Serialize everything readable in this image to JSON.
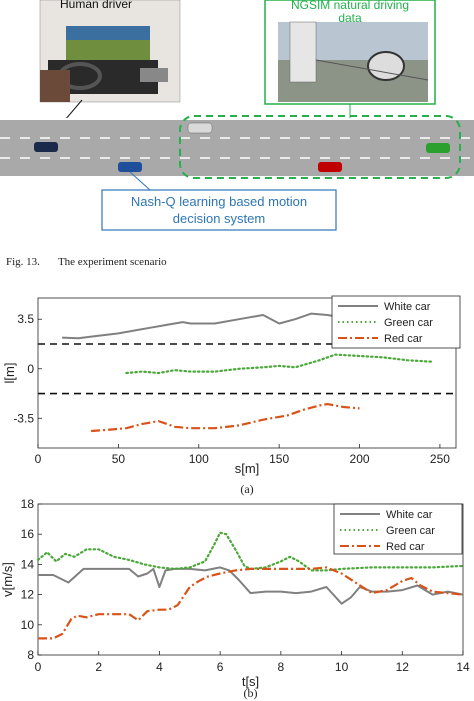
{
  "scenario": {
    "human_driver_label": "Human driver",
    "ngsim_label_line1": "NGSIM natural driving",
    "ngsim_label_line2": "data",
    "decision_label_line1": "Nash-Q learning based motion",
    "decision_label_line2": "decision system",
    "colors": {
      "road": "#a9a9a9",
      "green_box": "#22b14c",
      "blue_box": "#2e75b6",
      "car_white": "#d9d9d9",
      "car_green": "#2ca02c",
      "car_red": "#c00000",
      "car_blue": "#1f4e9b",
      "car_dark": "#1a2a4a"
    }
  },
  "figure_caption": {
    "label": "Fig. 13.",
    "text": "The experiment scenario"
  },
  "chart_data": [
    {
      "type": "line",
      "panel_label": "(a)",
      "xlabel": "s[m]",
      "ylabel": "l[m]",
      "xlim": [
        0,
        260
      ],
      "ylim": [
        -5.6,
        5.0
      ],
      "xticks": [
        "0",
        "50",
        "100",
        "150",
        "200",
        "250"
      ],
      "xtick_values": [
        0,
        50,
        100,
        150,
        200,
        250
      ],
      "yticks": [
        "3.5",
        "0",
        "-3.5"
      ],
      "ytick_values": [
        3.5,
        0,
        -3.5
      ],
      "lane_lines": [
        1.75,
        -1.75
      ],
      "legend_position": "top-right",
      "series": [
        {
          "name": "White car",
          "color": "#808080",
          "style": "solid",
          "x": [
            15,
            25,
            35,
            50,
            60,
            70,
            80,
            90,
            95,
            110,
            125,
            140,
            150,
            160,
            170,
            180,
            185,
            200
          ],
          "y": [
            2.2,
            2.15,
            2.3,
            2.5,
            2.7,
            2.9,
            3.1,
            3.3,
            3.2,
            3.2,
            3.5,
            3.8,
            3.2,
            3.5,
            3.9,
            3.8,
            3.7,
            3.9
          ]
        },
        {
          "name": "Green car",
          "color": "#4ca83b",
          "style": "dotted",
          "x": [
            55,
            65,
            75,
            85,
            95,
            110,
            125,
            140,
            150,
            160,
            175,
            185,
            200,
            215,
            230,
            245
          ],
          "y": [
            -0.3,
            -0.2,
            -0.3,
            -0.1,
            -0.2,
            -0.2,
            0.0,
            0.1,
            0.2,
            0.1,
            0.6,
            1.0,
            0.9,
            0.8,
            0.6,
            0.5
          ]
        },
        {
          "name": "Red car",
          "color": "#d95319",
          "style": "dashdot",
          "x": [
            33,
            45,
            55,
            65,
            75,
            85,
            95,
            110,
            125,
            140,
            155,
            165,
            175,
            180,
            190,
            200
          ],
          "y": [
            -4.4,
            -4.3,
            -4.2,
            -3.9,
            -3.7,
            -4.1,
            -4.2,
            -4.2,
            -4.0,
            -3.6,
            -3.3,
            -2.9,
            -2.6,
            -2.5,
            -2.7,
            -2.8
          ]
        }
      ]
    },
    {
      "type": "line",
      "panel_label": "(b)",
      "xlabel": "t[s]",
      "ylabel": "v[m/s]",
      "xlim": [
        0,
        14
      ],
      "ylim": [
        8,
        18
      ],
      "xticks": [
        "0",
        "2",
        "4",
        "6",
        "8",
        "10",
        "12",
        "14"
      ],
      "xtick_values": [
        0,
        2,
        4,
        6,
        8,
        10,
        12,
        14
      ],
      "yticks": [
        "8",
        "10",
        "12",
        "14",
        "16",
        "18"
      ],
      "ytick_values": [
        8,
        10,
        12,
        14,
        16,
        18
      ],
      "legend_position": "top-right",
      "series": [
        {
          "name": "White car",
          "color": "#808080",
          "style": "solid",
          "x": [
            0,
            0.5,
            1.0,
            1.5,
            2.0,
            2.5,
            3.0,
            3.3,
            3.6,
            3.8,
            4.0,
            4.2,
            4.5,
            5.0,
            5.5,
            6.0,
            6.3,
            6.6,
            7.0,
            7.5,
            8.0,
            8.5,
            9.0,
            9.5,
            10.0,
            10.3,
            10.6,
            11.0,
            11.5,
            12.0,
            12.5,
            13.0,
            13.5,
            14.0
          ],
          "y": [
            13.3,
            13.3,
            12.8,
            13.7,
            13.7,
            13.7,
            13.7,
            13.2,
            13.4,
            13.7,
            12.5,
            13.6,
            13.7,
            13.7,
            13.6,
            13.8,
            13.6,
            13.0,
            12.1,
            12.2,
            12.2,
            12.1,
            12.2,
            12.5,
            11.4,
            11.8,
            12.5,
            12.2,
            12.2,
            12.3,
            12.6,
            12.0,
            12.2,
            12.0
          ]
        },
        {
          "name": "Green car",
          "color": "#4ca83b",
          "style": "dotted",
          "x": [
            0,
            0.3,
            0.6,
            0.9,
            1.2,
            1.6,
            2.0,
            2.5,
            3.0,
            3.5,
            4.0,
            4.5,
            5.0,
            5.5,
            5.8,
            6.0,
            6.2,
            6.5,
            6.8,
            7.0,
            7.5,
            8.0,
            8.3,
            8.6,
            9.0,
            9.5,
            10.0,
            11.0,
            12.0,
            13.0,
            14.0
          ],
          "y": [
            14.3,
            14.8,
            14.2,
            14.7,
            14.5,
            15.0,
            15.0,
            14.5,
            14.3,
            14.0,
            13.8,
            13.7,
            13.8,
            14.2,
            15.3,
            16.1,
            16.0,
            15.0,
            13.9,
            13.7,
            13.8,
            14.2,
            14.5,
            14.2,
            13.6,
            13.6,
            13.7,
            13.8,
            13.8,
            13.8,
            13.9
          ]
        },
        {
          "name": "Red car",
          "color": "#d95319",
          "style": "dashdot",
          "x": [
            0,
            0.5,
            0.8,
            1.1,
            1.3,
            1.6,
            2.0,
            3.0,
            3.3,
            3.6,
            4.0,
            4.3,
            4.6,
            5.0,
            5.3,
            5.6,
            6.0,
            6.5,
            7.0,
            8.0,
            9.0,
            9.5,
            10.0,
            11.0,
            11.5,
            12.0,
            12.3,
            12.6,
            13.0,
            13.5,
            14.0
          ],
          "y": [
            9.1,
            9.1,
            9.4,
            10.4,
            10.6,
            10.5,
            10.7,
            10.7,
            10.3,
            10.9,
            11.0,
            11.0,
            11.3,
            12.5,
            12.9,
            13.2,
            13.4,
            13.6,
            13.7,
            13.7,
            13.7,
            13.8,
            13.4,
            12.1,
            12.3,
            12.9,
            13.1,
            12.6,
            12.2,
            12.1,
            12.0
          ]
        }
      ]
    }
  ]
}
